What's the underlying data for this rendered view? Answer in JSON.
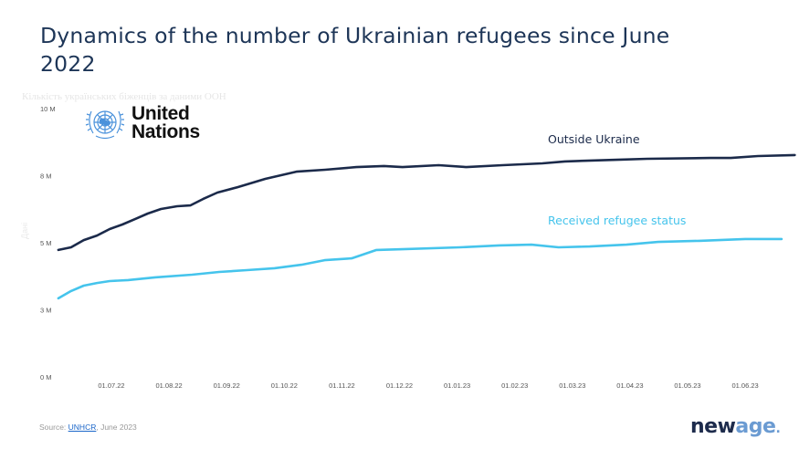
{
  "title": "Dynamics of the number of Ukrainian refugees since June 2022",
  "subtitle_faded": "Кількість українських біженців за даними ООН",
  "y_axis_faded_label": "Дані",
  "logo": {
    "icon": "un-emblem-icon",
    "line1": "United",
    "line2": "Nations",
    "color": "#4b92db"
  },
  "source": {
    "prefix": "Source: ",
    "link": "UNHCR",
    "suffix": ", June 2023"
  },
  "brand": {
    "part1": "new",
    "part2": "age",
    "dot": ".",
    "color1": "#1d2b4c",
    "color2": "#6b9bd2"
  },
  "chart_data": {
    "type": "line",
    "title": "Dynamics of the number of Ukrainian refugees since June 2022",
    "xlabel": "",
    "ylabel": "",
    "ylim": [
      0,
      10
    ],
    "y_unit": "M",
    "y_ticks": [
      0,
      2.5,
      5,
      7.5,
      10
    ],
    "y_tick_labels": [
      "0 M",
      "3 M",
      "5 M",
      "8 M",
      "10 M"
    ],
    "x_tick_labels": [
      "01.07.22",
      "01.08.22",
      "01.09.22",
      "01.10.22",
      "01.11.22",
      "01.12.22",
      "01.01.23",
      "01.02.23",
      "01.03.23",
      "01.04.23",
      "01.05.23",
      "01.06.23"
    ],
    "x_range_months": [
      -0.92,
      12.3
    ],
    "grid": false,
    "legend": "inline-labels",
    "series": [
      {
        "name": "Outside Ukraine",
        "color": "#1b2a4a",
        "x_months": [
          -0.92,
          -0.7,
          -0.48,
          -0.25,
          -0.03,
          0.19,
          0.41,
          0.63,
          0.86,
          1.14,
          1.37,
          1.59,
          1.84,
          2.19,
          2.67,
          3.21,
          3.71,
          4.25,
          4.73,
          5.05,
          5.68,
          6.16,
          6.79,
          7.48,
          7.87,
          8.83,
          9.3,
          10.4,
          10.75,
          11.22,
          11.86
        ],
        "values": [
          4.73,
          4.83,
          5.1,
          5.27,
          5.51,
          5.68,
          5.88,
          6.09,
          6.26,
          6.36,
          6.39,
          6.63,
          6.87,
          7.07,
          7.38,
          7.65,
          7.72,
          7.82,
          7.86,
          7.82,
          7.89,
          7.82,
          7.89,
          7.96,
          8.03,
          8.1,
          8.13,
          8.16,
          8.16,
          8.23,
          8.27
        ]
      },
      {
        "name": "Received refugee status",
        "color": "#45c4ec",
        "x_months": [
          -0.92,
          -0.7,
          -0.48,
          -0.25,
          -0.03,
          0.29,
          0.76,
          1.4,
          1.87,
          2.35,
          2.83,
          3.3,
          3.7,
          4.17,
          4.6,
          5.05,
          6.05,
          6.73,
          7.29,
          7.76,
          8.3,
          8.94,
          9.49,
          10.2,
          11.0,
          11.63
        ],
        "values": [
          2.93,
          3.2,
          3.4,
          3.5,
          3.57,
          3.61,
          3.71,
          3.81,
          3.91,
          3.98,
          4.05,
          4.18,
          4.35,
          4.42,
          4.73,
          4.76,
          4.83,
          4.9,
          4.93,
          4.83,
          4.86,
          4.93,
          5.03,
          5.07,
          5.14,
          5.14
        ]
      }
    ],
    "annotations": [
      {
        "text": "Outside Ukraine",
        "series": 0,
        "near_x_month": 9.0,
        "position": "above"
      },
      {
        "text": "Received refugee status",
        "series": 1,
        "near_x_month": 9.0,
        "position": "above"
      }
    ]
  }
}
